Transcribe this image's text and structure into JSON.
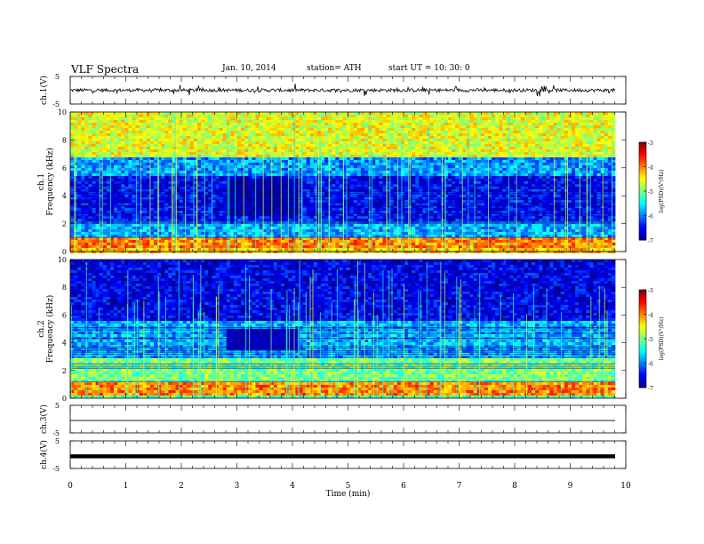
{
  "header": {
    "title": "VLF  Spectra",
    "date": "Jan. 10, 2014",
    "station": "station= ATH",
    "start": "start  UT  =    10: 30: 0"
  },
  "chart_data": [
    {
      "type": "line",
      "panel": "ch1-waveform",
      "ylabel": "ch.1(V)",
      "ytick_labels": [
        "5",
        "-5"
      ],
      "ylim": [
        -5,
        5
      ],
      "xlim": [
        0,
        9.8
      ],
      "series": [
        {
          "values_note_level": 0,
          "color": "#000000"
        }
      ]
    },
    {
      "type": "heatmap",
      "panel": "ch1-spectrogram",
      "ylabel": "Frequency  (kHz)",
      "channel_label": "ch.1",
      "ytick_labels": [
        "0",
        "2",
        "4",
        "6",
        "8",
        "10"
      ],
      "ylim": [
        0,
        10
      ],
      "xlim": [
        0,
        9.8
      ],
      "bands": [
        {
          "range": [
            0.0,
            0.3
          ],
          "level": -4.3
        },
        {
          "range": [
            0.3,
            1.0
          ],
          "level": -4.0
        },
        {
          "range": [
            1.0,
            2.2
          ],
          "level": -5.8
        },
        {
          "range": [
            2.2,
            5.5
          ],
          "level": -6.5
        },
        {
          "range": [
            5.5,
            6.7
          ],
          "level": -5.9
        },
        {
          "range": [
            6.7,
            10.0
          ],
          "level": -4.6
        }
      ],
      "quiet_region": {
        "t": [
          2.8,
          4.1
        ],
        "f": [
          2.5,
          5.2
        ],
        "level": -6.9
      },
      "colorbar": {
        "label": "log(PSD)(V²/Hz)",
        "tick_labels": [
          "-3",
          "-4",
          "-5",
          "-6",
          "-7"
        ],
        "range": [
          -7,
          -3
        ]
      }
    },
    {
      "type": "heatmap",
      "panel": "ch2-spectrogram",
      "ylabel": "Frequency  (kHz)",
      "channel_label": "ch.2",
      "ytick_labels": [
        "0",
        "2",
        "4",
        "6",
        "8",
        "10"
      ],
      "ylim": [
        0,
        10
      ],
      "xlim": [
        0,
        9.8
      ],
      "bands": [
        {
          "range": [
            0.0,
            0.2
          ],
          "level": -5.2
        },
        {
          "range": [
            0.2,
            1.2
          ],
          "level": -4.0
        },
        {
          "range": [
            1.2,
            2.8
          ],
          "level": -5.0
        },
        {
          "range": [
            2.8,
            5.5
          ],
          "level": -5.8
        },
        {
          "range": [
            5.5,
            10.0
          ],
          "level": -6.6
        }
      ],
      "quiet_region": {
        "t": [
          2.8,
          4.1
        ],
        "f": [
          3.5,
          5.0
        ],
        "level": -6.8
      },
      "colorbar": {
        "label": "log(PSD)(V²/Hz)",
        "tick_labels": [
          "-3",
          "-4",
          "-5",
          "-6",
          "-7"
        ],
        "range": [
          -7,
          -3
        ]
      }
    },
    {
      "type": "line",
      "panel": "ch3-waveform",
      "ylabel": "ch.3(V)",
      "ytick_labels": [
        "5",
        "-5"
      ],
      "ylim": [
        -5,
        5
      ],
      "xlim": [
        0,
        9.8
      ],
      "series": [
        {
          "values_note_level": -0.5,
          "color": "#000000"
        }
      ]
    },
    {
      "type": "line",
      "panel": "ch4-waveform",
      "ylabel": "ch.4(V)",
      "ytick_labels": [
        "5",
        "-5"
      ],
      "ylim": [
        -5,
        5
      ],
      "xlim": [
        0,
        9.8
      ],
      "series": [
        {
          "values_note_level": -0.6,
          "color": "#000000"
        }
      ]
    }
  ],
  "x_axis": {
    "label": "Time  (min)",
    "tick_labels": [
      "0",
      "1",
      "2",
      "3",
      "4",
      "5",
      "6",
      "7",
      "8",
      "9",
      "10"
    ],
    "range": [
      0,
      10
    ]
  },
  "colors": {
    "jet": [
      "#00008f",
      "#0000ff",
      "#007fff",
      "#00ffff",
      "#7fff7f",
      "#ffff00",
      "#ff7f00",
      "#ff0000",
      "#7f0000"
    ]
  }
}
